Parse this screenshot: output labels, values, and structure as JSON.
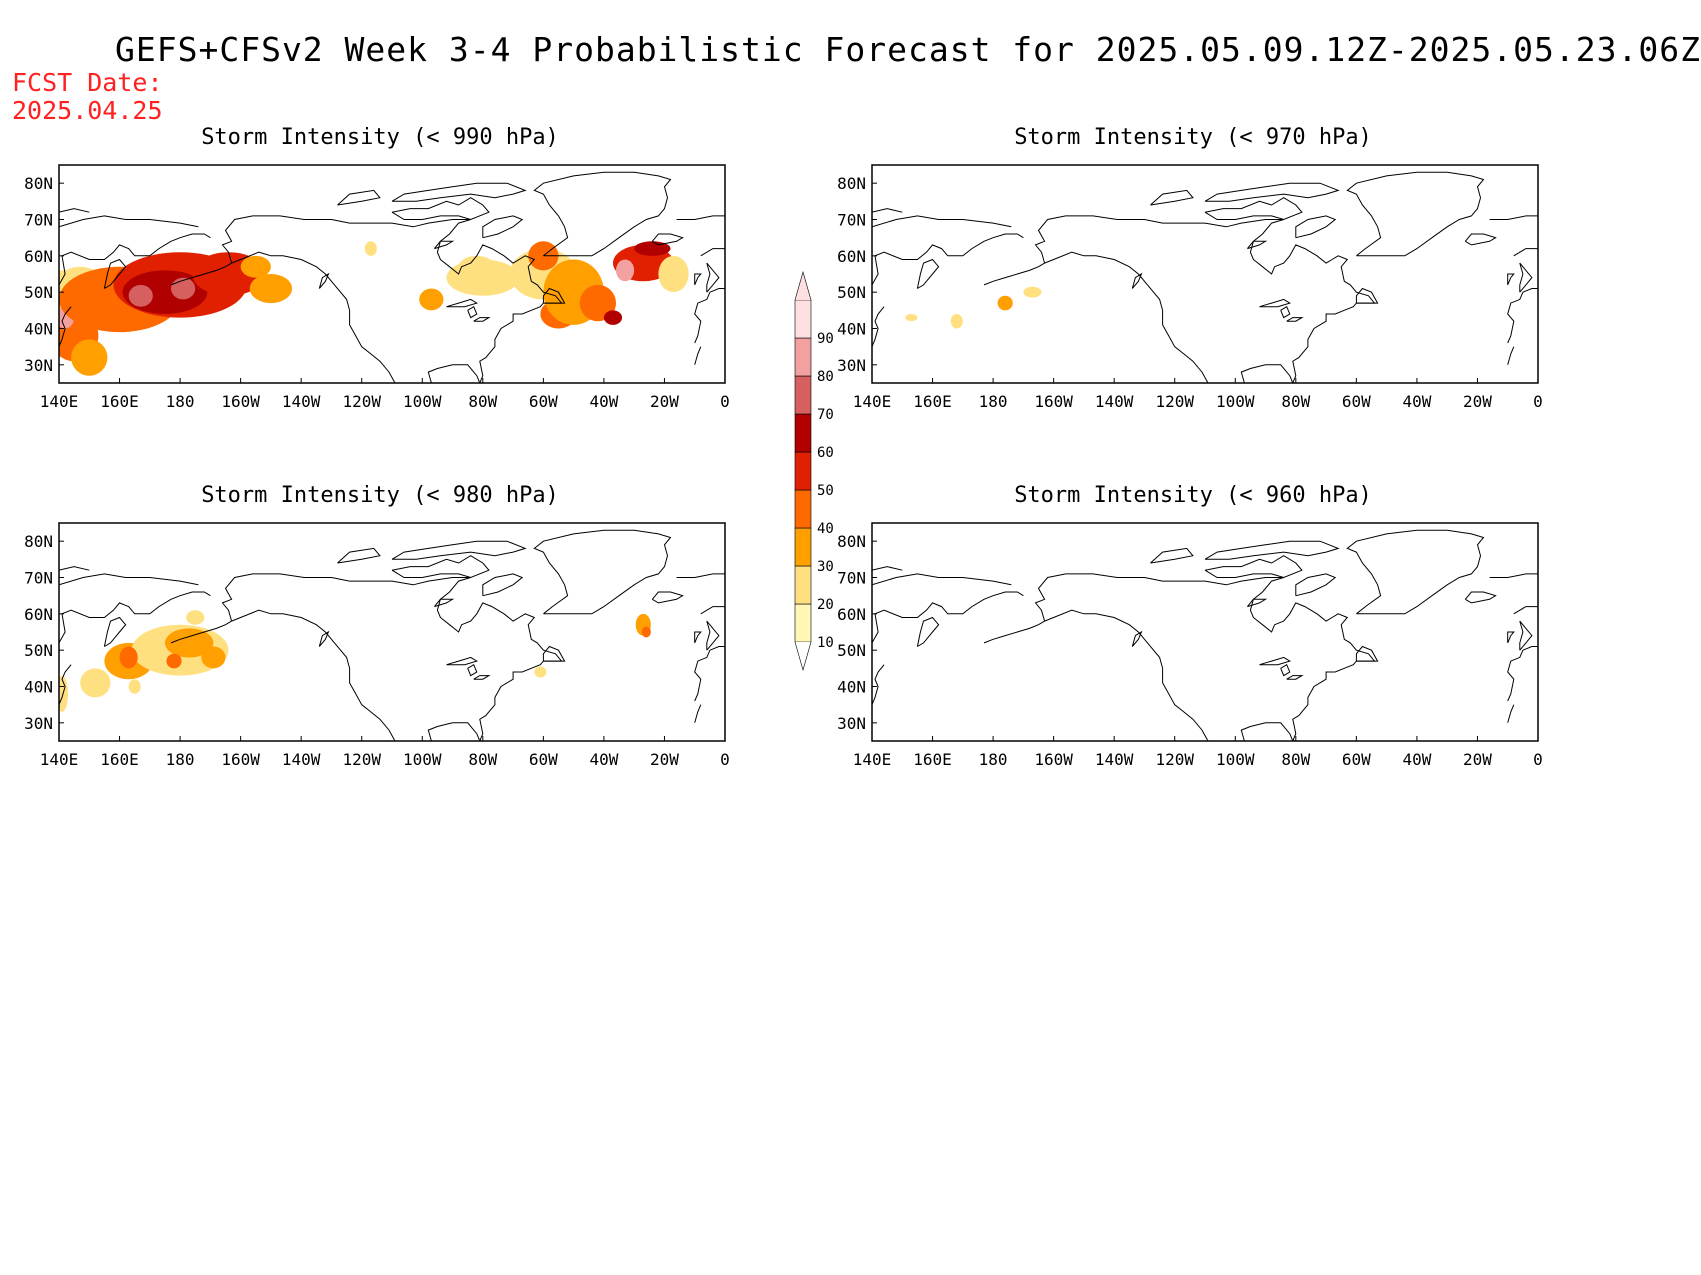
{
  "header": {
    "title": "GEFS+CFSv2 Week 3-4 Probabilistic Forecast for 2025.05.09.12Z-2025.05.23.06Z",
    "fcst_label": "FCST Date:",
    "fcst_date": "2025.04.25"
  },
  "axes": {
    "x_ticks": [
      "140E",
      "160E",
      "180",
      "160W",
      "140W",
      "120W",
      "100W",
      "80W",
      "60W",
      "40W",
      "20W",
      "0"
    ],
    "y_ticks": [
      "80N",
      "70N",
      "60N",
      "50N",
      "40N",
      "30N"
    ],
    "lon_range": [
      140,
      360
    ],
    "lat_range": [
      25,
      85
    ]
  },
  "colorbar": {
    "levels": [
      "10",
      "20",
      "30",
      "40",
      "50",
      "60",
      "70",
      "80",
      "90"
    ],
    "colors": [
      "#fff7b3",
      "#ffe080",
      "#ff9f00",
      "#ff6a00",
      "#e02000",
      "#b00000",
      "#d66060",
      "#f2a0a0",
      "#ffe0e0"
    ]
  },
  "panels": [
    {
      "id": "p990",
      "title": "Storm Intensity (< 990 hPa)",
      "blobs": [
        {
          "lon": 141,
          "lat": 50,
          "rlon": 6,
          "rlat": 6,
          "level": 1
        },
        {
          "lon": 145,
          "lat": 38,
          "rlon": 8,
          "rlat": 7,
          "level": 3
        },
        {
          "lon": 150,
          "lat": 32,
          "rlon": 6,
          "rlat": 5,
          "level": 2
        },
        {
          "lon": 142,
          "lat": 43,
          "rlon": 3,
          "rlat": 3,
          "level": 7
        },
        {
          "lon": 147,
          "lat": 52,
          "rlon": 8,
          "rlat": 5,
          "level": 1
        },
        {
          "lon": 160,
          "lat": 48,
          "rlon": 20,
          "rlat": 9,
          "level": 3
        },
        {
          "lon": 180,
          "lat": 52,
          "rlon": 22,
          "rlat": 9,
          "level": 4
        },
        {
          "lon": 175,
          "lat": 50,
          "rlon": 14,
          "rlat": 6,
          "level": 5
        },
        {
          "lon": 167,
          "lat": 49,
          "rlon": 4,
          "rlat": 3,
          "level": 6
        },
        {
          "lon": 181,
          "lat": 51,
          "rlon": 4,
          "rlat": 3,
          "level": 6
        },
        {
          "lon": 196,
          "lat": 55,
          "rlon": 12,
          "rlat": 6,
          "level": 4
        },
        {
          "lon": 210,
          "lat": 51,
          "rlon": 7,
          "rlat": 4,
          "level": 2
        },
        {
          "lon": 205,
          "lat": 57,
          "rlon": 5,
          "rlat": 3,
          "level": 2
        },
        {
          "lon": 263,
          "lat": 48,
          "rlon": 4,
          "rlat": 3,
          "level": 2
        },
        {
          "lon": 280,
          "lat": 54,
          "rlon": 12,
          "rlat": 5,
          "level": 1
        },
        {
          "lon": 278,
          "lat": 57,
          "rlon": 6,
          "rlat": 3,
          "level": 1
        },
        {
          "lon": 300,
          "lat": 55,
          "rlon": 11,
          "rlat": 7,
          "level": 1
        },
        {
          "lon": 300,
          "lat": 60,
          "rlon": 5,
          "rlat": 4,
          "level": 3
        },
        {
          "lon": 305,
          "lat": 44,
          "rlon": 6,
          "rlat": 4,
          "level": 3
        },
        {
          "lon": 310,
          "lat": 50,
          "rlon": 10,
          "rlat": 9,
          "level": 2
        },
        {
          "lon": 318,
          "lat": 47,
          "rlon": 6,
          "rlat": 5,
          "level": 3
        },
        {
          "lon": 323,
          "lat": 43,
          "rlon": 3,
          "rlat": 2,
          "level": 5
        },
        {
          "lon": 333,
          "lat": 58,
          "rlon": 10,
          "rlat": 5,
          "level": 4
        },
        {
          "lon": 336,
          "lat": 62,
          "rlon": 6,
          "rlat": 2,
          "level": 5
        },
        {
          "lon": 327,
          "lat": 56,
          "rlon": 3,
          "rlat": 3,
          "level": 7
        },
        {
          "lon": 343,
          "lat": 55,
          "rlon": 5,
          "rlat": 5,
          "level": 1
        },
        {
          "lon": 243,
          "lat": 62,
          "rlon": 2,
          "rlat": 2,
          "level": 1
        }
      ]
    },
    {
      "id": "p970",
      "title": "Storm Intensity (< 970 hPa)",
      "blobs": [
        {
          "lon": 168,
          "lat": 42,
          "rlon": 2,
          "rlat": 2,
          "level": 1
        },
        {
          "lon": 184,
          "lat": 47,
          "rlon": 2.5,
          "rlat": 2,
          "level": 2
        },
        {
          "lon": 193,
          "lat": 50,
          "rlon": 3,
          "rlat": 1.5,
          "level": 1
        },
        {
          "lon": 153,
          "lat": 43,
          "rlon": 2,
          "rlat": 1,
          "level": 1
        }
      ]
    },
    {
      "id": "p980",
      "title": "Storm Intensity (< 980 hPa)",
      "blobs": [
        {
          "lon": 141,
          "lat": 38,
          "rlon": 2,
          "rlat": 5,
          "level": 1
        },
        {
          "lon": 152,
          "lat": 41,
          "rlon": 5,
          "rlat": 4,
          "level": 1
        },
        {
          "lon": 163,
          "lat": 47,
          "rlon": 8,
          "rlat": 5,
          "level": 2
        },
        {
          "lon": 180,
          "lat": 50,
          "rlon": 16,
          "rlat": 7,
          "level": 1
        },
        {
          "lon": 183,
          "lat": 52,
          "rlon": 8,
          "rlat": 4,
          "level": 2
        },
        {
          "lon": 191,
          "lat": 48,
          "rlon": 4,
          "rlat": 3,
          "level": 2
        },
        {
          "lon": 185,
          "lat": 59,
          "rlon": 3,
          "rlat": 2,
          "level": 1
        },
        {
          "lon": 163,
          "lat": 48,
          "rlon": 3,
          "rlat": 3,
          "level": 3
        },
        {
          "lon": 178,
          "lat": 47,
          "rlon": 2.5,
          "rlat": 2,
          "level": 3
        },
        {
          "lon": 165,
          "lat": 40,
          "rlon": 2,
          "rlat": 2,
          "level": 1
        },
        {
          "lon": 333,
          "lat": 57,
          "rlon": 2.5,
          "rlat": 3,
          "level": 2
        },
        {
          "lon": 334,
          "lat": 55,
          "rlon": 1.5,
          "rlat": 1.5,
          "level": 3
        },
        {
          "lon": 299,
          "lat": 44,
          "rlon": 2,
          "rlat": 1.5,
          "level": 1
        }
      ]
    },
    {
      "id": "p960",
      "title": "Storm Intensity (< 960 hPa)",
      "blobs": []
    }
  ]
}
